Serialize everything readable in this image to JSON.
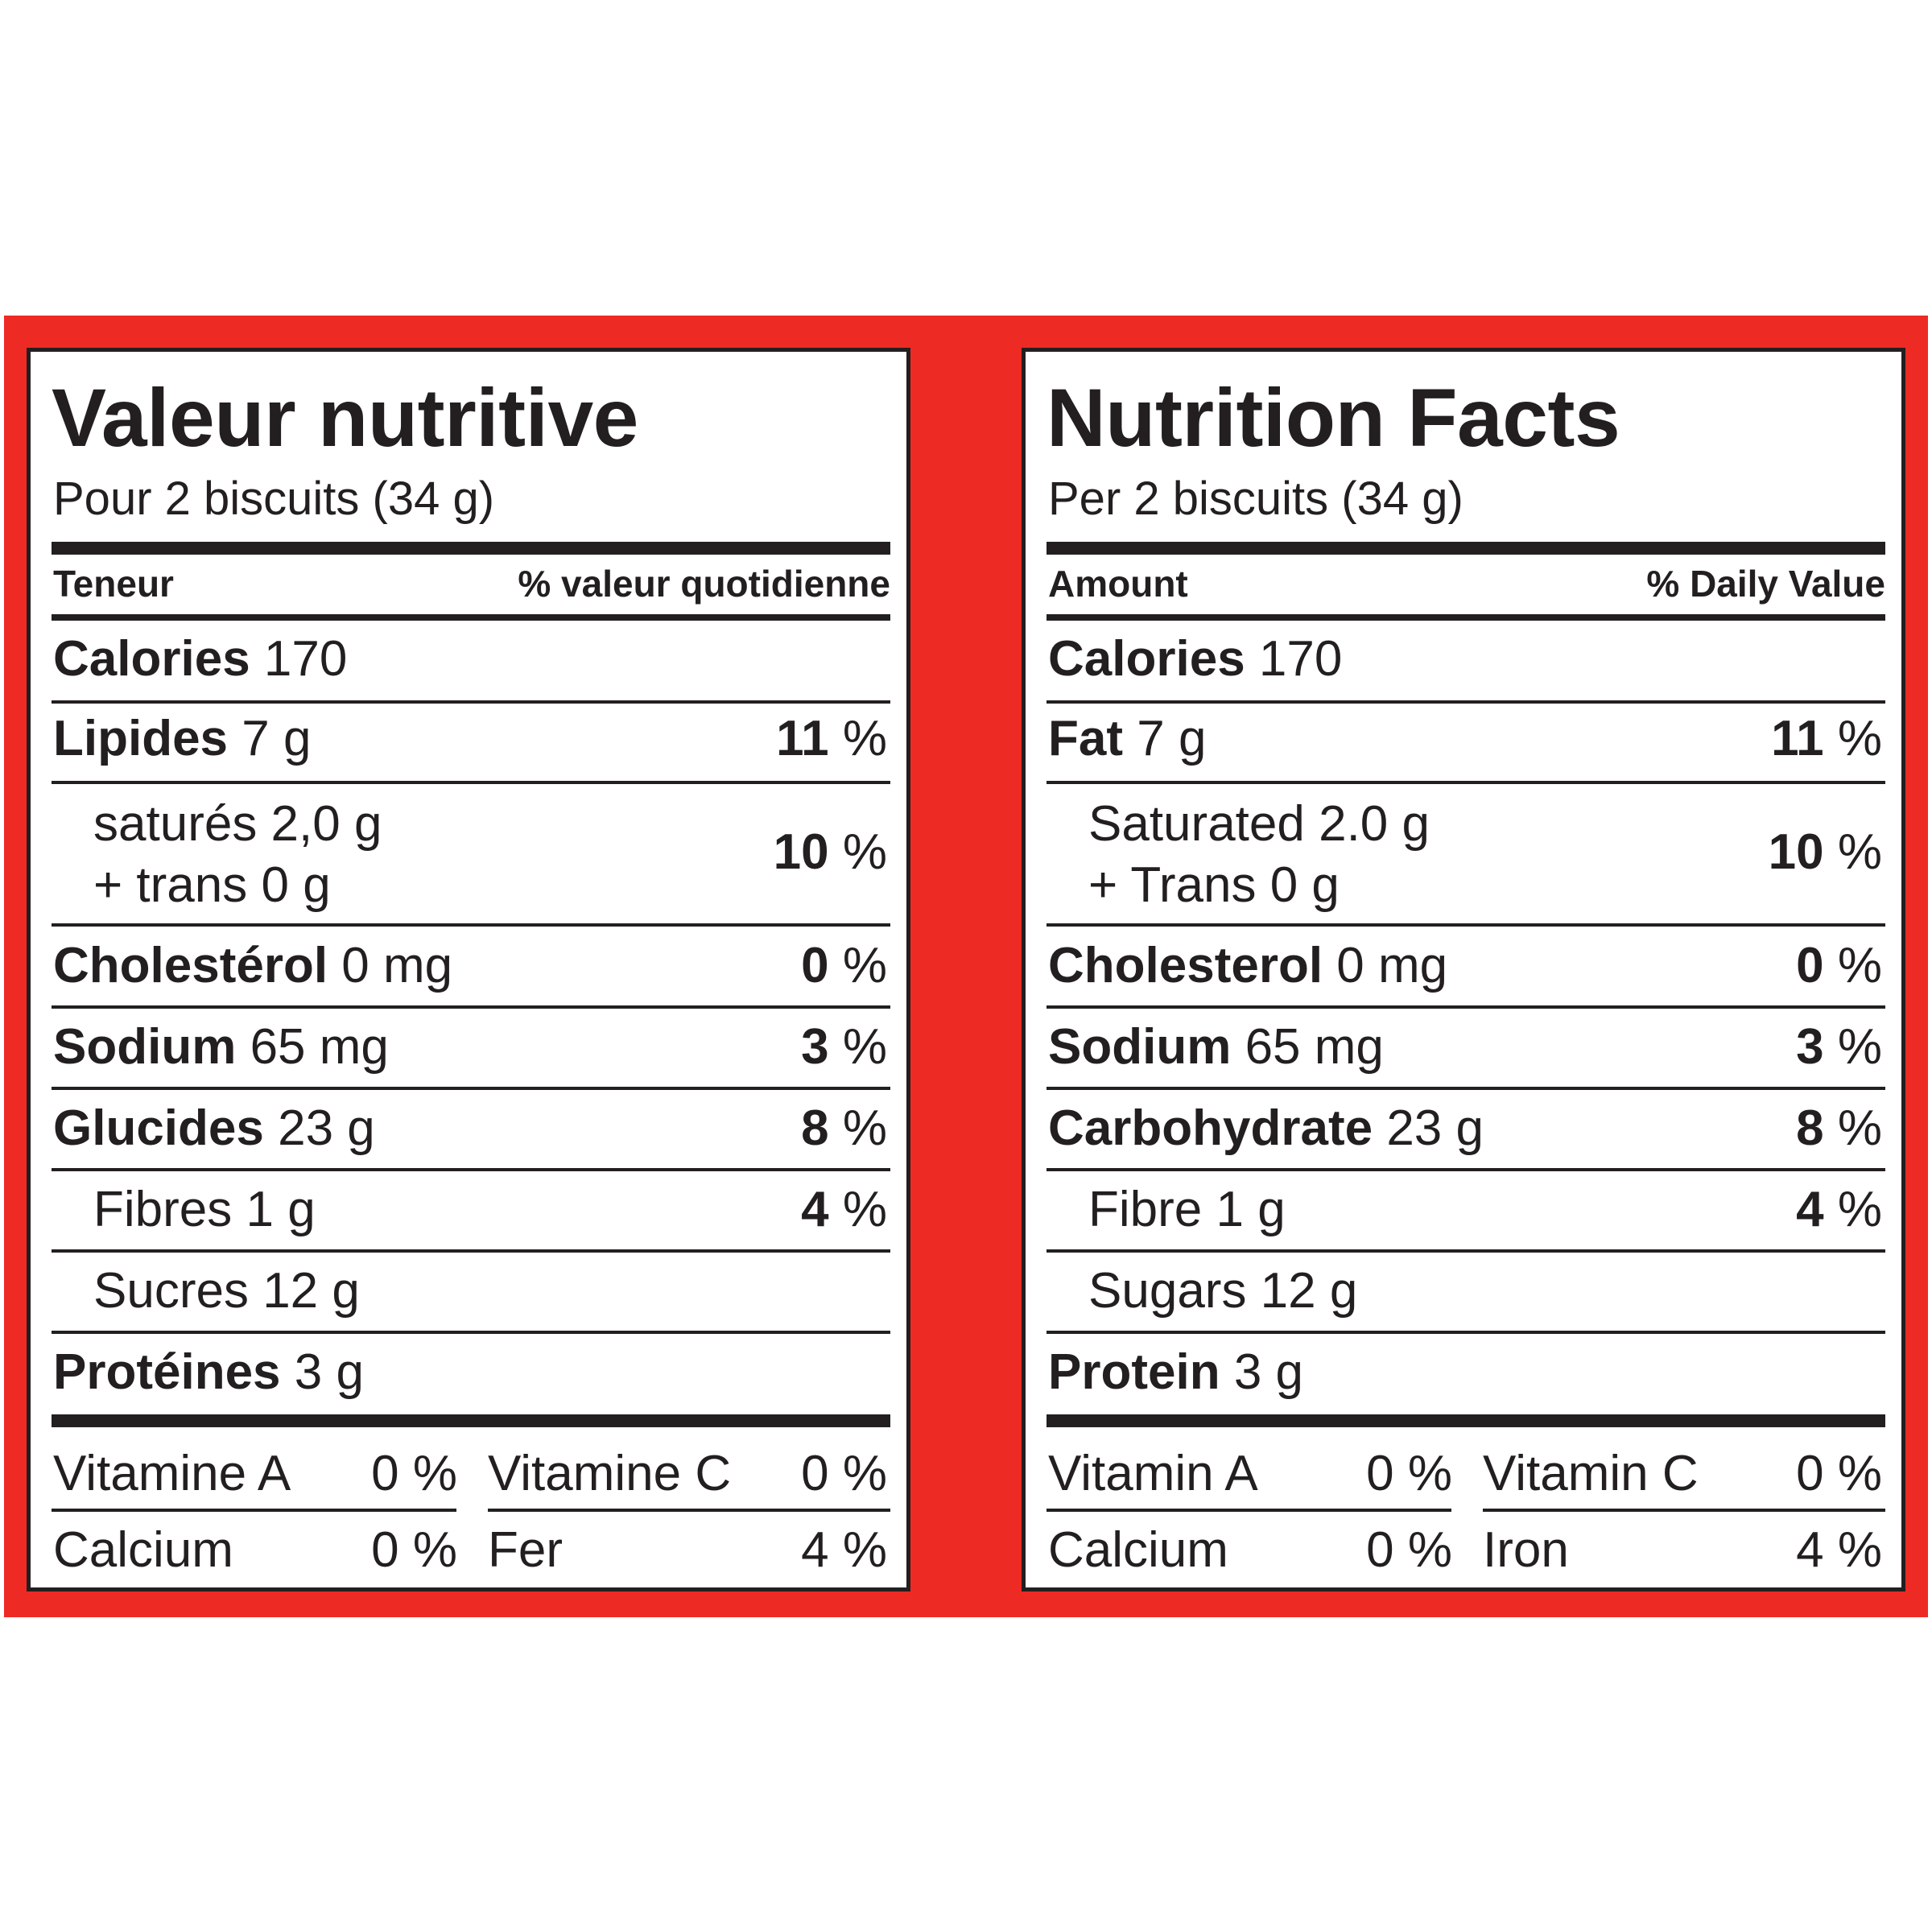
{
  "colors": {
    "band": "#ee2a24",
    "ink": "#231f20",
    "panel": "#ffffff"
  },
  "french": {
    "title": "Valeur nutritive",
    "serving": "Pour 2 biscuits (34 g)",
    "header_left": "Teneur",
    "header_right": "% valeur quotidienne",
    "calories_name": "Calories",
    "calories_value": "170",
    "fat_name": "Lipides",
    "fat_amount": "7 g",
    "fat_dv": "11",
    "sat_line1": "saturés 2,0 g",
    "sat_line2": "+ trans 0 g",
    "sat_dv": "10",
    "chol_name": "Cholestérol",
    "chol_amount": "0 mg",
    "chol_dv": "0",
    "sodium_name": "Sodium",
    "sodium_amount": "65 mg",
    "sodium_dv": "3",
    "carb_name": "Glucides",
    "carb_amount": "23 g",
    "carb_dv": "8",
    "fibre_line": "Fibres 1 g",
    "fibre_dv": "4",
    "sugars_line": "Sucres 12 g",
    "protein_name": "Protéines",
    "protein_amount": "3 g",
    "vit_a_name": "Vitamine A",
    "vit_a_value": "0 %",
    "vit_c_name": "Vitamine C",
    "vit_c_value": "0 %",
    "calcium_name": "Calcium",
    "calcium_value": "0 %",
    "iron_name": "Fer",
    "iron_value": "4 %",
    "percent_sign": "%"
  },
  "english": {
    "title": "Nutrition Facts",
    "serving": "Per 2 biscuits (34 g)",
    "header_left": "Amount",
    "header_right": "% Daily Value",
    "calories_name": "Calories",
    "calories_value": "170",
    "fat_name": "Fat",
    "fat_amount": "7 g",
    "fat_dv": "11",
    "sat_line1": "Saturated 2.0 g",
    "sat_line2": "+ Trans 0 g",
    "sat_dv": "10",
    "chol_name": "Cholesterol",
    "chol_amount": "0 mg",
    "chol_dv": "0",
    "sodium_name": "Sodium",
    "sodium_amount": "65 mg",
    "sodium_dv": "3",
    "carb_name": "Carbohydrate",
    "carb_amount": "23 g",
    "carb_dv": "8",
    "fibre_line": "Fibre 1 g",
    "fibre_dv": "4",
    "sugars_line": "Sugars 12 g",
    "protein_name": "Protein",
    "protein_amount": "3 g",
    "vit_a_name": "Vitamin A",
    "vit_a_value": "0 %",
    "vit_c_name": "Vitamin C",
    "vit_c_value": "0 %",
    "calcium_name": "Calcium",
    "calcium_value": "0 %",
    "iron_name": "Iron",
    "iron_value": "4 %",
    "percent_sign": "%"
  }
}
